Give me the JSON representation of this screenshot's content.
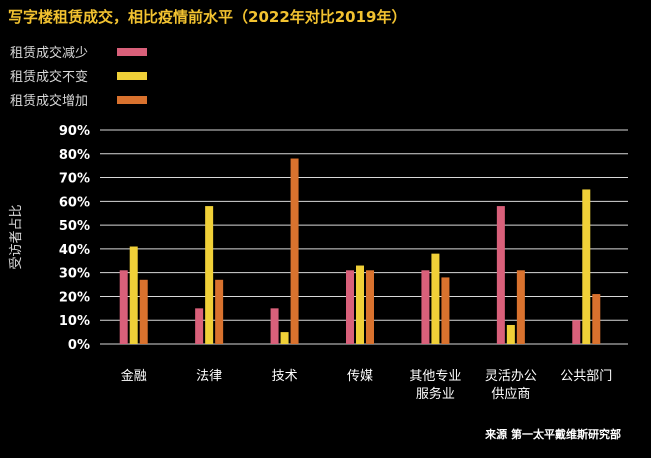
{
  "title": "写字楼租赁成交，相比疫情前水平（2022年对比2019年）",
  "source": "来源 第一太平戴维斯研究部",
  "colors": {
    "background": "#000000",
    "title": "#f2c230",
    "gridline": "#ffffff"
  },
  "chart_data": {
    "type": "bar",
    "title": "写字楼租赁成交，相比疫情前水平（2022年对比2019年）",
    "ylabel": "受访者占比",
    "xlabel": "",
    "ylim": [
      0,
      90
    ],
    "yticks": [
      0,
      10,
      20,
      30,
      40,
      50,
      60,
      70,
      80,
      90
    ],
    "ytick_labels": [
      "0%",
      "10%",
      "20%",
      "30%",
      "40%",
      "50%",
      "60%",
      "70%",
      "80%",
      "90%"
    ],
    "grid": true,
    "legend_position": "top-left",
    "categories": [
      [
        "金融"
      ],
      [
        "法律"
      ],
      [
        "技术"
      ],
      [
        "传媒"
      ],
      [
        "其他专业",
        "服务业"
      ],
      [
        "灵活办公",
        "供应商"
      ],
      [
        "公共部门"
      ]
    ],
    "series": [
      {
        "name": "租赁成交减少",
        "color": "#d9607a",
        "values": [
          31,
          15,
          15,
          31,
          31,
          58,
          10
        ]
      },
      {
        "name": "租赁成交不变",
        "color": "#f0d038",
        "values": [
          41,
          58,
          5,
          33,
          38,
          8,
          65
        ]
      },
      {
        "name": "租赁成交增加",
        "color": "#d9722e",
        "values": [
          27,
          27,
          78,
          31,
          28,
          31,
          21
        ]
      }
    ]
  }
}
